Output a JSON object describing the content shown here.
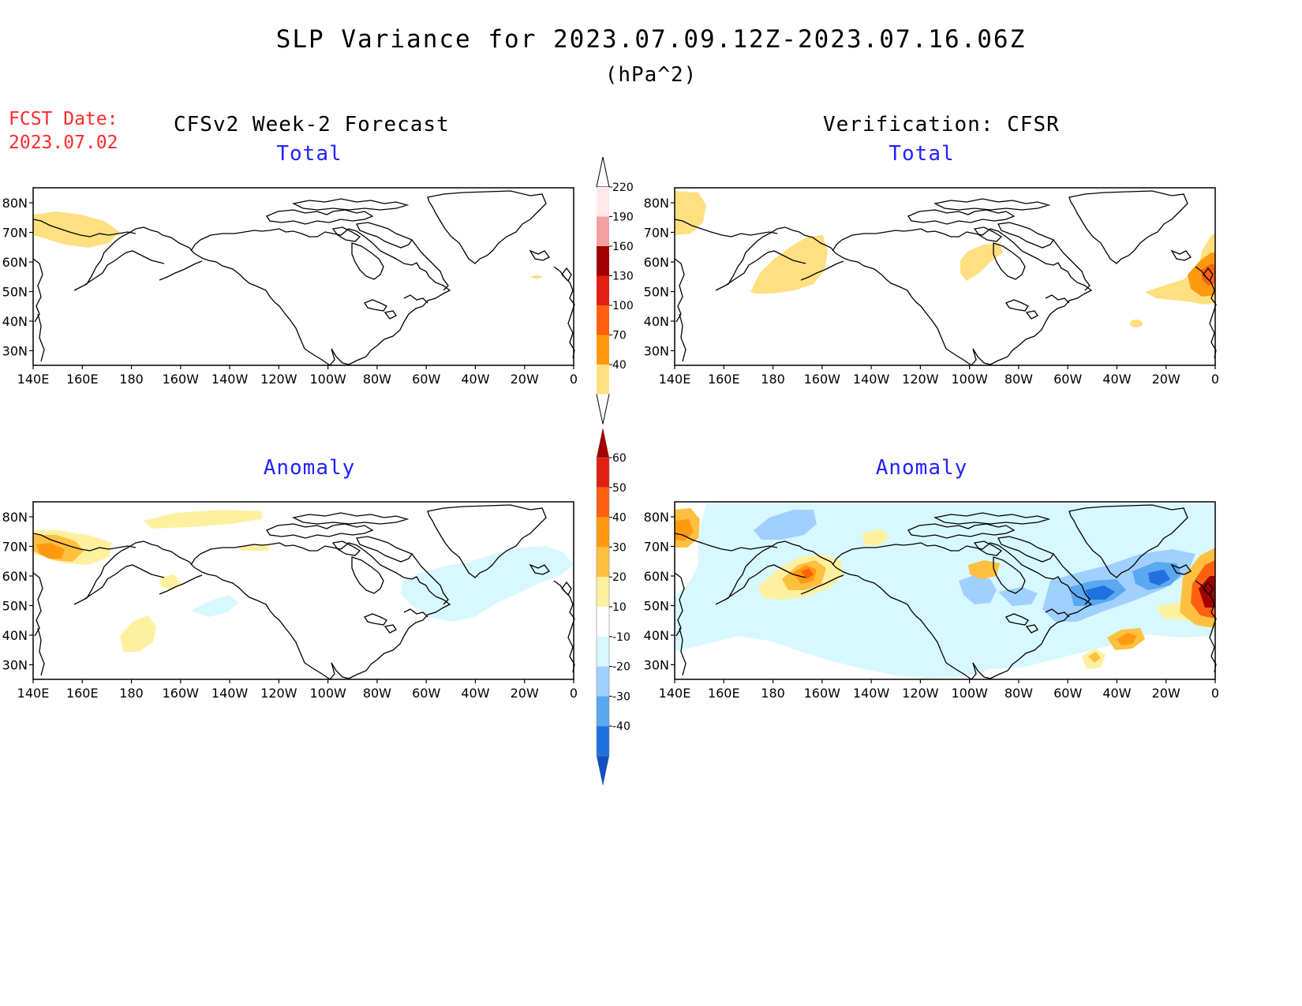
{
  "header": {
    "title": "SLP Variance for 2023.07.09.12Z-2023.07.16.06Z",
    "units": "(hPa^2)",
    "fcst_label": "FCST Date:",
    "fcst_date": "2023.07.02"
  },
  "columns": {
    "left": "CFSv2 Week-2 Forecast",
    "right": "Verification: CFSR"
  },
  "panels": {
    "total_left": "Total",
    "total_right": "Total",
    "anom_left": "Anomaly",
    "anom_right": "Anomaly"
  },
  "axes": {
    "lon_labels": [
      "140E",
      "160E",
      "180",
      "160W",
      "140W",
      "120W",
      "100W",
      "80W",
      "60W",
      "40W",
      "20W",
      "0"
    ],
    "lat_labels": [
      "80N",
      "70N",
      "60N",
      "50N",
      "40N",
      "30N"
    ]
  },
  "colorbars": {
    "total": {
      "levels": [
        "220",
        "190",
        "160",
        "130",
        "100",
        "70",
        "40"
      ],
      "colors": [
        "#ffe8e8",
        "#f4a0a0",
        "#a00000",
        "#e02010",
        "#ff6010",
        "#ff9a10",
        "#ffe080"
      ]
    },
    "anomaly": {
      "levels": [
        "60",
        "50",
        "40",
        "30",
        "20",
        "10",
        "-10",
        "-20",
        "-30",
        "-40"
      ],
      "colors": [
        "#a00000",
        "#e02010",
        "#ff6010",
        "#ff9a10",
        "#ffc040",
        "#fff0a0",
        "#ffffff",
        "#d8f8ff",
        "#a0d0ff",
        "#5aa8f0",
        "#2070e0",
        "#1050c0"
      ]
    }
  }
}
